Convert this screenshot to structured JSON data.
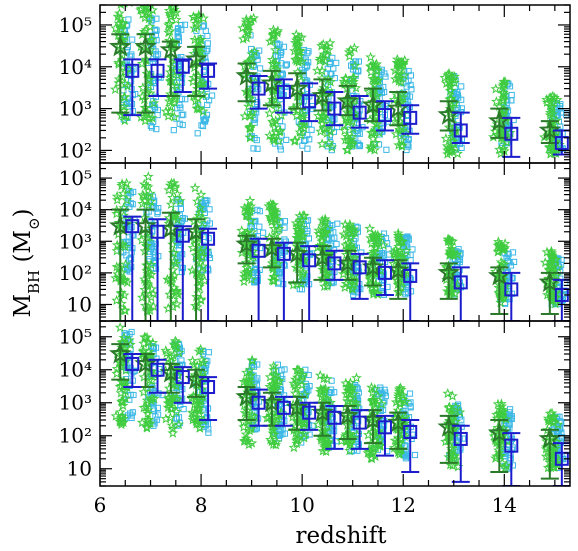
{
  "chart_data": {
    "type": "scatter",
    "xlabel": "redshift",
    "ylabel": "M_BH (M_⊙)",
    "ylabel_parts": {
      "main": "M",
      "sub": "BH",
      "unit_open": " (M",
      "unit_sub": "⊙",
      "unit_close": ")"
    },
    "xlim": [
      6,
      15.3
    ],
    "x_ticks": [
      6,
      8,
      10,
      12,
      14
    ],
    "y_scale": "log",
    "colors": {
      "star_green": "#3fcc3f",
      "square_cyan": "#3cb8e6",
      "median_darkgreen": "#2a7a2a",
      "median_blue": "#1c1ccc"
    },
    "redshifts": [
      6.5,
      7.0,
      7.5,
      8.0,
      9.0,
      9.5,
      10.0,
      10.5,
      11.0,
      11.5,
      12.0,
      13.0,
      14.0,
      15.0
    ],
    "panels": [
      {
        "ylim": [
          50,
          300000
        ],
        "y_ticks": [
          {
            "value": 100,
            "label": "10²"
          },
          {
            "value": 1000,
            "label": "10³"
          },
          {
            "value": 10000,
            "label": "10⁴"
          },
          {
            "value": 100000,
            "label": "10⁵"
          }
        ],
        "stars_range": [
          [
            500,
            400000
          ],
          [
            500,
            400000
          ],
          [
            600,
            300000
          ],
          [
            800,
            200000
          ],
          [
            200,
            150000
          ],
          [
            150,
            100000
          ],
          [
            120,
            60000
          ],
          [
            100,
            40000
          ],
          [
            100,
            30000
          ],
          [
            100,
            20000
          ],
          [
            100,
            15000
          ],
          [
            80,
            8000
          ],
          [
            80,
            5000
          ],
          [
            80,
            2000
          ]
        ],
        "squares_range": [
          [
            300,
            150000
          ],
          [
            300,
            150000
          ],
          [
            300,
            120000
          ],
          [
            250,
            100000
          ],
          [
            100,
            60000
          ],
          [
            100,
            40000
          ],
          [
            100,
            30000
          ],
          [
            100,
            20000
          ],
          [
            100,
            15000
          ],
          [
            100,
            10000
          ],
          [
            100,
            8000
          ],
          [
            100,
            6000
          ],
          [
            100,
            4000
          ],
          [
            100,
            1500
          ]
        ],
        "green_median": [
          {
            "z": 6.5,
            "y": 30000,
            "lo": 800,
            "hi": 60000
          },
          {
            "z": 7.0,
            "y": 30000,
            "lo": 800,
            "hi": 60000
          },
          {
            "z": 7.5,
            "y": 25000,
            "lo": 2000,
            "hi": 40000
          },
          {
            "z": 8.0,
            "y": 15000,
            "lo": 2000,
            "hi": 30000
          },
          {
            "z": 9.0,
            "y": 6000,
            "lo": 1500,
            "hi": 12000
          },
          {
            "z": 9.5,
            "y": 4000,
            "lo": 1200,
            "hi": 8000
          },
          {
            "z": 10.0,
            "y": 3000,
            "lo": 1000,
            "hi": 7000
          },
          {
            "z": 10.5,
            "y": 2000,
            "lo": 900,
            "hi": 5000
          },
          {
            "z": 11.0,
            "y": 1500,
            "lo": 700,
            "hi": 3500
          },
          {
            "z": 11.5,
            "y": 1200,
            "lo": 500,
            "hi": 3000
          },
          {
            "z": 12.0,
            "y": 1000,
            "lo": 400,
            "hi": 2500
          },
          {
            "z": 13.0,
            "y": 700,
            "lo": 300,
            "hi": 1500
          },
          {
            "z": 14.0,
            "y": 500,
            "lo": 200,
            "hi": 1000
          },
          {
            "z": 15.0,
            "y": 300,
            "lo": 150,
            "hi": 500
          }
        ],
        "blue_median": [
          {
            "z": 6.5,
            "y": 8000,
            "lo": 700,
            "hi": 15000
          },
          {
            "z": 7.0,
            "y": 8000,
            "lo": 2000,
            "hi": 15000
          },
          {
            "z": 7.5,
            "y": 10000,
            "lo": 2500,
            "hi": 15000
          },
          {
            "z": 8.0,
            "y": 8000,
            "lo": 3000,
            "hi": 12000
          },
          {
            "z": 9.0,
            "y": 3000,
            "lo": 1000,
            "hi": 6000
          },
          {
            "z": 9.5,
            "y": 2500,
            "lo": 800,
            "hi": 5000
          },
          {
            "z": 10.0,
            "y": 1500,
            "lo": 500,
            "hi": 4000
          },
          {
            "z": 10.5,
            "y": 1000,
            "lo": 400,
            "hi": 2500
          },
          {
            "z": 11.0,
            "y": 800,
            "lo": 350,
            "hi": 2000
          },
          {
            "z": 11.5,
            "y": 700,
            "lo": 300,
            "hi": 1500
          },
          {
            "z": 12.0,
            "y": 600,
            "lo": 250,
            "hi": 1200
          },
          {
            "z": 13.0,
            "y": 300,
            "lo": 150,
            "hi": 800
          },
          {
            "z": 14.0,
            "y": 250,
            "lo": 70,
            "hi": 600
          },
          {
            "z": 15.0,
            "y": 150,
            "lo": 80,
            "hi": 300
          }
        ]
      },
      {
        "ylim": [
          3,
          300000
        ],
        "y_ticks": [
          {
            "value": 10,
            "label": "10"
          },
          {
            "value": 100,
            "label": "10²"
          },
          {
            "value": 1000,
            "label": "10³"
          },
          {
            "value": 10000,
            "label": "10⁴"
          },
          {
            "value": 100000,
            "label": "10⁵"
          }
        ],
        "stars_range": [
          [
            5,
            150000
          ],
          [
            5,
            120000
          ],
          [
            5,
            80000
          ],
          [
            5,
            50000
          ],
          [
            50,
            20000
          ],
          [
            50,
            15000
          ],
          [
            40,
            10000
          ],
          [
            30,
            6000
          ],
          [
            30,
            4000
          ],
          [
            20,
            3000
          ],
          [
            20,
            2000
          ],
          [
            20,
            1500
          ],
          [
            10,
            1000
          ],
          [
            10,
            500
          ]
        ],
        "squares_range": [
          [
            100,
            40000
          ],
          [
            100,
            30000
          ],
          [
            100,
            30000
          ],
          [
            100,
            20000
          ],
          [
            50,
            10000
          ],
          [
            40,
            8000
          ],
          [
            30,
            6000
          ],
          [
            30,
            4000
          ],
          [
            20,
            3000
          ],
          [
            20,
            2000
          ],
          [
            20,
            1500
          ],
          [
            20,
            700
          ],
          [
            10,
            500
          ],
          [
            10,
            300
          ]
        ],
        "green_median": [
          {
            "z": 6.5,
            "y": 3000,
            "lo": 3,
            "hi": 10000
          },
          {
            "z": 7.0,
            "y": 3000,
            "lo": 3,
            "hi": 10000
          },
          {
            "z": 7.5,
            "y": 2500,
            "lo": 3,
            "hi": 8000
          },
          {
            "z": 8.0,
            "y": 2000,
            "lo": 3,
            "hi": 5000
          },
          {
            "z": 9.0,
            "y": 800,
            "lo": 200,
            "hi": 1500
          },
          {
            "z": 9.5,
            "y": 600,
            "lo": 150,
            "hi": 1200
          },
          {
            "z": 10.0,
            "y": 400,
            "lo": 50,
            "hi": 900
          },
          {
            "z": 10.5,
            "y": 300,
            "lo": 60,
            "hi": 700
          },
          {
            "z": 11.0,
            "y": 200,
            "lo": 60,
            "hi": 500
          },
          {
            "z": 11.5,
            "y": 150,
            "lo": 40,
            "hi": 300
          },
          {
            "z": 12.0,
            "y": 120,
            "lo": 15,
            "hi": 250
          },
          {
            "z": 13.0,
            "y": 100,
            "lo": 15,
            "hi": 200
          },
          {
            "z": 14.0,
            "y": 80,
            "lo": 5,
            "hi": 150
          },
          {
            "z": 15.0,
            "y": 50,
            "lo": 5,
            "hi": 100
          }
        ],
        "blue_median": [
          {
            "z": 6.5,
            "y": 3000,
            "lo": 3,
            "hi": 6000
          },
          {
            "z": 7.0,
            "y": 2000,
            "lo": 3,
            "hi": 5000
          },
          {
            "z": 7.5,
            "y": 1500,
            "lo": 3,
            "hi": 3000
          },
          {
            "z": 8.0,
            "y": 1200,
            "lo": 3,
            "hi": 2500
          },
          {
            "z": 9.0,
            "y": 500,
            "lo": 3,
            "hi": 1200
          },
          {
            "z": 9.5,
            "y": 400,
            "lo": 3,
            "hi": 900
          },
          {
            "z": 10.0,
            "y": 250,
            "lo": 3,
            "hi": 700
          },
          {
            "z": 10.5,
            "y": 200,
            "lo": 60,
            "hi": 500
          },
          {
            "z": 11.0,
            "y": 150,
            "lo": 15,
            "hi": 400
          },
          {
            "z": 11.5,
            "y": 100,
            "lo": 20,
            "hi": 250
          },
          {
            "z": 12.0,
            "y": 80,
            "lo": 3,
            "hi": 200
          },
          {
            "z": 13.0,
            "y": 50,
            "lo": 3,
            "hi": 150
          },
          {
            "z": 14.0,
            "y": 30,
            "lo": 3,
            "hi": 100
          },
          {
            "z": 15.0,
            "y": 20,
            "lo": 3,
            "hi": 60
          }
        ]
      },
      {
        "ylim": [
          3,
          300000
        ],
        "y_ticks": [
          {
            "value": 10,
            "label": "10"
          },
          {
            "value": 100,
            "label": "10²"
          },
          {
            "value": 1000,
            "label": "10³"
          },
          {
            "value": 10000,
            "label": "10⁴"
          },
          {
            "value": 100000,
            "label": "10⁵"
          }
        ],
        "stars_range": [
          [
            200,
            200000
          ],
          [
            150,
            100000
          ],
          [
            100,
            80000
          ],
          [
            100,
            50000
          ],
          [
            50,
            20000
          ],
          [
            50,
            15000
          ],
          [
            40,
            10000
          ],
          [
            30,
            8000
          ],
          [
            30,
            6000
          ],
          [
            20,
            4000
          ],
          [
            20,
            3000
          ],
          [
            10,
            2000
          ],
          [
            10,
            1000
          ],
          [
            10,
            500
          ]
        ],
        "squares_range": [
          [
            300,
            150000
          ],
          [
            200,
            80000
          ],
          [
            150,
            60000
          ],
          [
            100,
            40000
          ],
          [
            100,
            20000
          ],
          [
            80,
            15000
          ],
          [
            50,
            10000
          ],
          [
            40,
            6000
          ],
          [
            30,
            4000
          ],
          [
            30,
            3000
          ],
          [
            20,
            2000
          ],
          [
            20,
            1000
          ],
          [
            10,
            700
          ],
          [
            10,
            400
          ]
        ],
        "green_median": [
          {
            "z": 6.5,
            "y": 30000,
            "lo": 5000,
            "hi": 60000
          },
          {
            "z": 7.0,
            "y": 15000,
            "lo": 3000,
            "hi": 30000
          },
          {
            "z": 7.5,
            "y": 8000,
            "lo": 2000,
            "hi": 15000
          },
          {
            "z": 8.0,
            "y": 5000,
            "lo": 1500,
            "hi": 10000
          },
          {
            "z": 9.0,
            "y": 1500,
            "lo": 300,
            "hi": 3000
          },
          {
            "z": 9.5,
            "y": 1000,
            "lo": 200,
            "hi": 2000
          },
          {
            "z": 10.0,
            "y": 700,
            "lo": 150,
            "hi": 1500
          },
          {
            "z": 10.5,
            "y": 500,
            "lo": 100,
            "hi": 1000
          },
          {
            "z": 11.0,
            "y": 400,
            "lo": 80,
            "hi": 800
          },
          {
            "z": 11.5,
            "y": 300,
            "lo": 60,
            "hi": 600
          },
          {
            "z": 12.0,
            "y": 250,
            "lo": 40,
            "hi": 500
          },
          {
            "z": 13.0,
            "y": 180,
            "lo": 15,
            "hi": 400
          },
          {
            "z": 14.0,
            "y": 120,
            "lo": 8,
            "hi": 300
          },
          {
            "z": 15.0,
            "y": 80,
            "lo": 5,
            "hi": 150
          }
        ],
        "blue_median": [
          {
            "z": 6.5,
            "y": 15000,
            "lo": 3000,
            "hi": 30000
          },
          {
            "z": 7.0,
            "y": 10000,
            "lo": 2000,
            "hi": 20000
          },
          {
            "z": 7.5,
            "y": 6000,
            "lo": 1000,
            "hi": 12000
          },
          {
            "z": 8.0,
            "y": 3000,
            "lo": 300,
            "hi": 6000
          },
          {
            "z": 9.0,
            "y": 1000,
            "lo": 200,
            "hi": 2500
          },
          {
            "z": 9.5,
            "y": 700,
            "lo": 200,
            "hi": 1500
          },
          {
            "z": 10.0,
            "y": 500,
            "lo": 150,
            "hi": 1000
          },
          {
            "z": 10.5,
            "y": 350,
            "lo": 40,
            "hi": 800
          },
          {
            "z": 11.0,
            "y": 250,
            "lo": 40,
            "hi": 600
          },
          {
            "z": 11.5,
            "y": 180,
            "lo": 25,
            "hi": 400
          },
          {
            "z": 12.0,
            "y": 130,
            "lo": 8,
            "hi": 300
          },
          {
            "z": 13.0,
            "y": 80,
            "lo": 4,
            "hi": 200
          },
          {
            "z": 14.0,
            "y": 50,
            "lo": 3,
            "hi": 120
          },
          {
            "z": 15.0,
            "y": 20,
            "lo": 3,
            "hi": 60
          }
        ]
      }
    ]
  }
}
